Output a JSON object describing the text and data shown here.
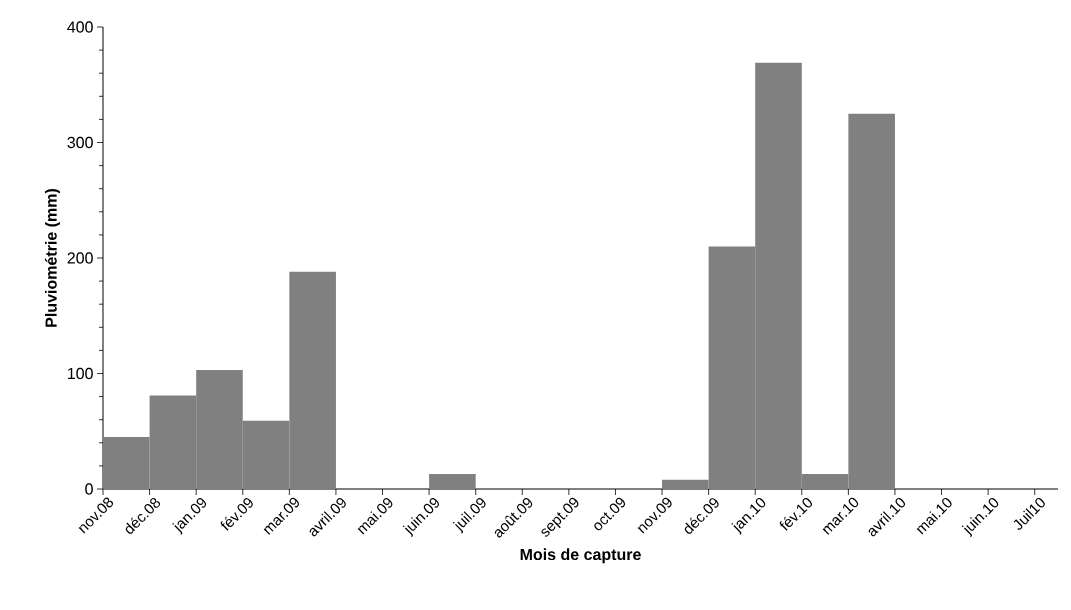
{
  "chart_data": {
    "type": "bar",
    "xlabel": "Mois de capture",
    "ylabel": "Pluviométrie (mm)",
    "categories": [
      "nov.08",
      "déc.08",
      "jan.09",
      "fév.09",
      "mar.09",
      "avril.09",
      "mai.09",
      "juin.09",
      "juil.09",
      "août.09",
      "sept.09",
      "oct.09",
      "nov.09",
      "déc.09",
      "jan.10",
      "fév.10",
      "mar.10",
      "avril.10",
      "mai.10",
      "juin.10",
      "Juil10"
    ],
    "values": [
      45,
      81,
      103,
      59,
      188,
      0,
      0,
      13,
      0,
      0,
      0,
      0,
      8,
      210,
      369,
      13,
      325,
      0,
      0,
      0,
      null
    ],
    "color": "#808080",
    "ylim": [
      0,
      400
    ],
    "yticks": [
      0,
      {
        "value": 20,
        "label": null
      },
      {
        "value": 40,
        "label": null
      },
      {
        "value": 60,
        "label": null
      },
      {
        "value": 80,
        "label": null
      },
      100,
      {
        "value": 120,
        "label": null
      },
      {
        "value": 140,
        "label": null
      },
      {
        "value": 160,
        "label": null
      },
      {
        "value": 180,
        "label": null
      },
      200,
      {
        "value": 220,
        "label": null
      },
      {
        "value": 240,
        "label": null
      },
      {
        "value": 260,
        "label": null
      },
      {
        "value": 280,
        "label": null
      },
      300,
      {
        "value": 320,
        "label": null
      },
      {
        "value": 340,
        "label": null
      },
      {
        "value": 360,
        "label": null
      },
      {
        "value": 380,
        "label": null
      },
      400
    ],
    "marker": "none"
  }
}
